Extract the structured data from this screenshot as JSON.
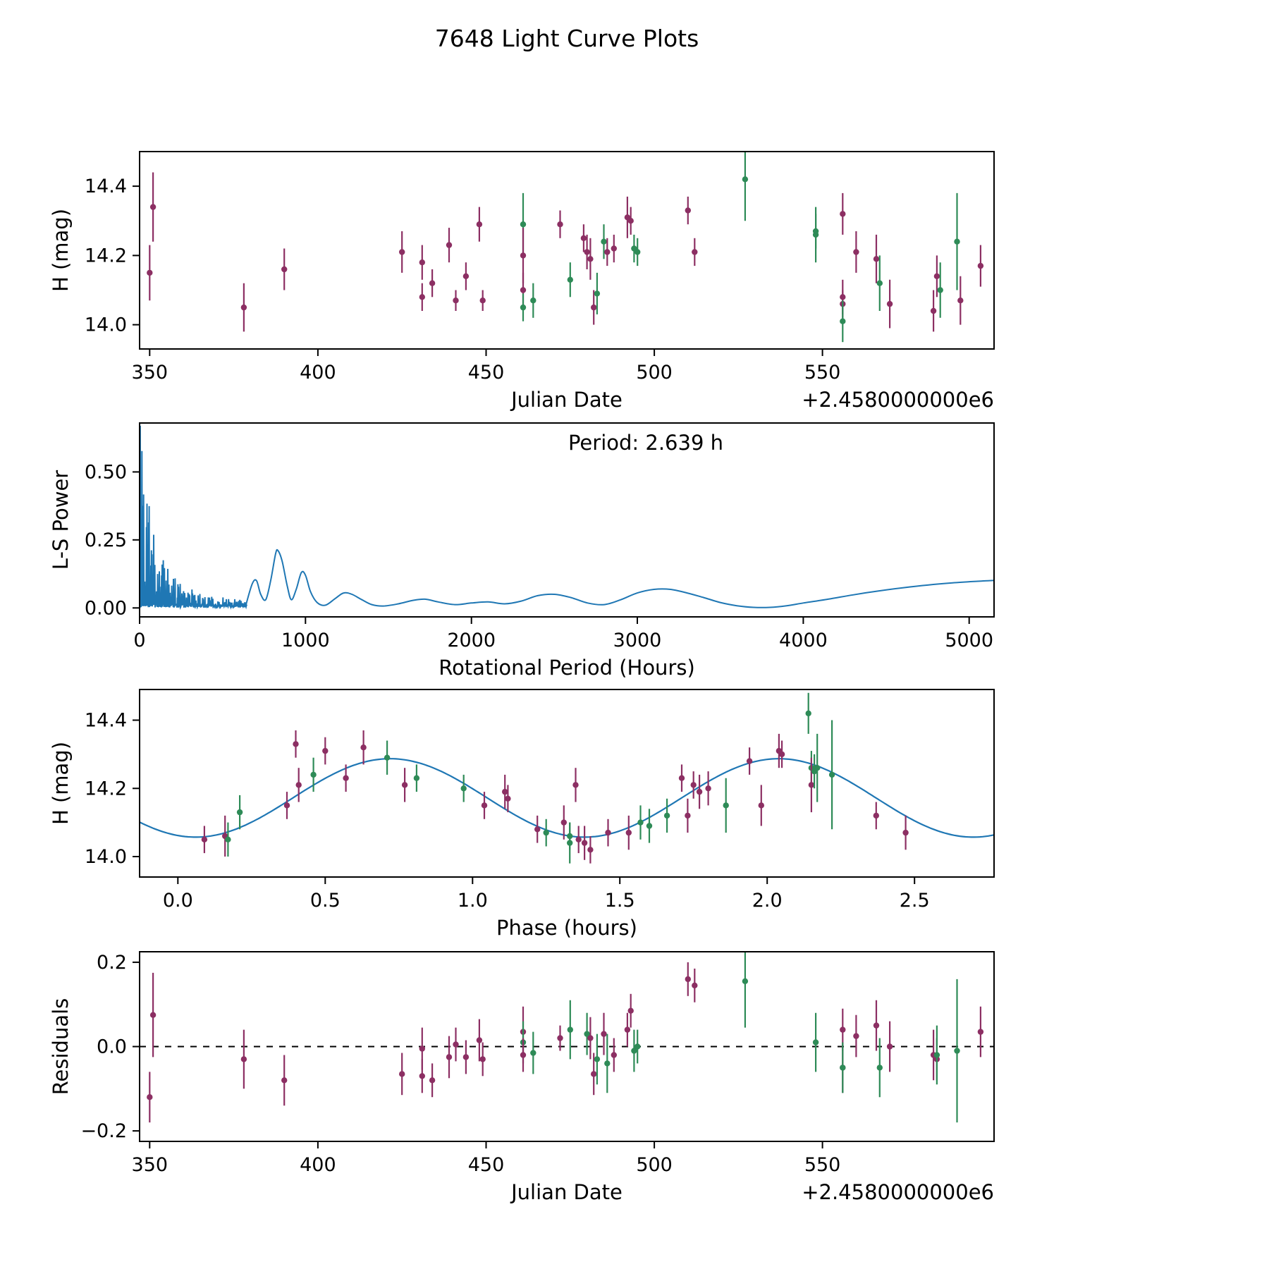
{
  "title": "7648 Light Curve Plots",
  "colors": {
    "purple": "#8c2f63",
    "green": "#2e8b57",
    "line_blue": "#1f77b4",
    "axis": "#000000"
  },
  "chart_data": [
    {
      "id": "lightcurve",
      "type": "scatter",
      "xlabel": "Julian Date",
      "ylabel": "H (mag)",
      "x_offset_label": "+2.4580000000e6",
      "xlim": [
        347,
        601
      ],
      "ylim": [
        13.93,
        14.5
      ],
      "xticks": [
        [
          350,
          "350"
        ],
        [
          400,
          "400"
        ],
        [
          450,
          "450"
        ],
        [
          500,
          "500"
        ],
        [
          550,
          "550"
        ]
      ],
      "yticks": [
        [
          14.0,
          "14.0"
        ],
        [
          14.2,
          "14.2"
        ],
        [
          14.4,
          "14.4"
        ]
      ],
      "points": [
        [
          350,
          14.15,
          0.08,
          "p"
        ],
        [
          351,
          14.34,
          0.1,
          "p"
        ],
        [
          378,
          14.05,
          0.07,
          "p"
        ],
        [
          390,
          14.16,
          0.06,
          "p"
        ],
        [
          425,
          14.21,
          0.06,
          "p"
        ],
        [
          431,
          14.18,
          0.05,
          "p"
        ],
        [
          431,
          14.08,
          0.04,
          "p"
        ],
        [
          434,
          14.12,
          0.04,
          "p"
        ],
        [
          439,
          14.23,
          0.05,
          "p"
        ],
        [
          441,
          14.07,
          0.03,
          "p"
        ],
        [
          444,
          14.14,
          0.04,
          "p"
        ],
        [
          448,
          14.29,
          0.05,
          "p"
        ],
        [
          449,
          14.07,
          0.03,
          "p"
        ],
        [
          461,
          14.29,
          0.09,
          "g"
        ],
        [
          461,
          14.2,
          0.08,
          "p"
        ],
        [
          461,
          14.1,
          0.05,
          "p"
        ],
        [
          461,
          14.05,
          0.04,
          "g"
        ],
        [
          464,
          14.07,
          0.05,
          "g"
        ],
        [
          472,
          14.29,
          0.04,
          "p"
        ],
        [
          475,
          14.13,
          0.05,
          "g"
        ],
        [
          479,
          14.25,
          0.04,
          "p"
        ],
        [
          480,
          14.21,
          0.05,
          "p"
        ],
        [
          481,
          14.19,
          0.06,
          "p"
        ],
        [
          482,
          14.05,
          0.05,
          "p"
        ],
        [
          483,
          14.09,
          0.06,
          "g"
        ],
        [
          485,
          14.24,
          0.05,
          "g"
        ],
        [
          486,
          14.21,
          0.04,
          "p"
        ],
        [
          488,
          14.22,
          0.04,
          "p"
        ],
        [
          492,
          14.31,
          0.06,
          "p"
        ],
        [
          493,
          14.3,
          0.04,
          "p"
        ],
        [
          494,
          14.22,
          0.04,
          "g"
        ],
        [
          495,
          14.21,
          0.04,
          "g"
        ],
        [
          510,
          14.33,
          0.04,
          "p"
        ],
        [
          512,
          14.21,
          0.04,
          "p"
        ],
        [
          527,
          14.42,
          0.12,
          "g"
        ],
        [
          548,
          14.26,
          0.08,
          "g"
        ],
        [
          548,
          14.27,
          0.05,
          "g"
        ],
        [
          556,
          14.32,
          0.06,
          "p"
        ],
        [
          556,
          14.08,
          0.05,
          "p"
        ],
        [
          556,
          14.06,
          0.04,
          "p"
        ],
        [
          556,
          14.01,
          0.06,
          "g"
        ],
        [
          560,
          14.21,
          0.06,
          "p"
        ],
        [
          566,
          14.19,
          0.07,
          "p"
        ],
        [
          567,
          14.12,
          0.08,
          "g"
        ],
        [
          570,
          14.06,
          0.07,
          "p"
        ],
        [
          583,
          14.04,
          0.06,
          "p"
        ],
        [
          584,
          14.14,
          0.06,
          "p"
        ],
        [
          585,
          14.1,
          0.08,
          "g"
        ],
        [
          590,
          14.24,
          0.14,
          "g"
        ],
        [
          591,
          14.07,
          0.07,
          "p"
        ],
        [
          597,
          14.17,
          0.06,
          "p"
        ]
      ]
    },
    {
      "id": "periodogram",
      "type": "line",
      "annotation": "Period: 2.639 h",
      "peak_period_hours": 2.639,
      "xlabel": "Rotational Period (Hours)",
      "ylabel": "L-S Power",
      "xlim": [
        0,
        5150
      ],
      "ylim": [
        -0.033,
        0.68
      ],
      "xticks": [
        [
          0,
          "0"
        ],
        [
          1000,
          "1000"
        ],
        [
          2000,
          "2000"
        ],
        [
          3000,
          "3000"
        ],
        [
          4000,
          "4000"
        ],
        [
          5000,
          "5000"
        ]
      ],
      "yticks": [
        [
          0.0,
          "0.00"
        ],
        [
          0.25,
          "0.25"
        ],
        [
          0.5,
          "0.50"
        ]
      ],
      "noise": {
        "x_start": 2,
        "x_end": 645,
        "n": 380,
        "seed": 7,
        "env_a": 0.58,
        "env_tau_a": 75,
        "env_b": 0.125,
        "env_tau_b": 420,
        "first_peak": 0.67
      },
      "curve": [
        [
          645,
          0.02
        ],
        [
          680,
          0.09
        ],
        [
          705,
          0.1
        ],
        [
          730,
          0.05
        ],
        [
          760,
          0.03
        ],
        [
          790,
          0.1
        ],
        [
          820,
          0.2
        ],
        [
          835,
          0.21
        ],
        [
          860,
          0.17
        ],
        [
          890,
          0.08
        ],
        [
          915,
          0.03
        ],
        [
          945,
          0.07
        ],
        [
          975,
          0.13
        ],
        [
          1000,
          0.12
        ],
        [
          1030,
          0.06
        ],
        [
          1070,
          0.02
        ],
        [
          1120,
          0.01
        ],
        [
          1180,
          0.035
        ],
        [
          1230,
          0.055
        ],
        [
          1280,
          0.05
        ],
        [
          1340,
          0.03
        ],
        [
          1400,
          0.012
        ],
        [
          1470,
          0.007
        ],
        [
          1560,
          0.015
        ],
        [
          1650,
          0.028
        ],
        [
          1720,
          0.032
        ],
        [
          1800,
          0.022
        ],
        [
          1900,
          0.012
        ],
        [
          2000,
          0.018
        ],
        [
          2100,
          0.022
        ],
        [
          2200,
          0.015
        ],
        [
          2300,
          0.025
        ],
        [
          2400,
          0.045
        ],
        [
          2500,
          0.05
        ],
        [
          2600,
          0.038
        ],
        [
          2700,
          0.018
        ],
        [
          2800,
          0.012
        ],
        [
          2900,
          0.03
        ],
        [
          3000,
          0.055
        ],
        [
          3100,
          0.068
        ],
        [
          3200,
          0.068
        ],
        [
          3300,
          0.055
        ],
        [
          3400,
          0.038
        ],
        [
          3500,
          0.02
        ],
        [
          3600,
          0.008
        ],
        [
          3700,
          0.002
        ],
        [
          3800,
          0.002
        ],
        [
          3900,
          0.008
        ],
        [
          4000,
          0.018
        ],
        [
          4150,
          0.032
        ],
        [
          4300,
          0.048
        ],
        [
          4450,
          0.062
        ],
        [
          4600,
          0.074
        ],
        [
          4750,
          0.084
        ],
        [
          4900,
          0.092
        ],
        [
          5050,
          0.098
        ],
        [
          5150,
          0.101
        ]
      ]
    },
    {
      "id": "phase",
      "type": "scatter_fit",
      "xlabel": "Phase (hours)",
      "ylabel": "H (mag)",
      "xlim": [
        -0.13,
        2.77
      ],
      "ylim": [
        13.94,
        14.49
      ],
      "xticks": [
        [
          0.0,
          "0.0"
        ],
        [
          0.5,
          "0.5"
        ],
        [
          1.0,
          "1.0"
        ],
        [
          1.5,
          "1.5"
        ],
        [
          2.0,
          "2.0"
        ],
        [
          2.5,
          "2.5"
        ]
      ],
      "yticks": [
        [
          14.0,
          "14.0"
        ],
        [
          14.2,
          "14.2"
        ],
        [
          14.4,
          "14.4"
        ]
      ],
      "fit": {
        "mean": 14.172,
        "amplitude": 0.115,
        "period": 1.3195,
        "phase_of_max": 0.72
      },
      "points": [
        [
          0.09,
          14.05,
          0.04,
          "p"
        ],
        [
          0.16,
          14.06,
          0.06,
          "p"
        ],
        [
          0.17,
          14.05,
          0.05,
          "g"
        ],
        [
          0.21,
          14.13,
          0.05,
          "g"
        ],
        [
          0.37,
          14.15,
          0.04,
          "p"
        ],
        [
          0.4,
          14.33,
          0.04,
          "p"
        ],
        [
          0.41,
          14.21,
          0.05,
          "p"
        ],
        [
          0.46,
          14.24,
          0.05,
          "g"
        ],
        [
          0.5,
          14.31,
          0.04,
          "p"
        ],
        [
          0.57,
          14.23,
          0.04,
          "p"
        ],
        [
          0.63,
          14.32,
          0.05,
          "p"
        ],
        [
          0.71,
          14.29,
          0.05,
          "g"
        ],
        [
          0.77,
          14.21,
          0.05,
          "p"
        ],
        [
          0.81,
          14.23,
          0.04,
          "g"
        ],
        [
          0.97,
          14.2,
          0.04,
          "g"
        ],
        [
          1.04,
          14.15,
          0.04,
          "p"
        ],
        [
          1.11,
          14.19,
          0.05,
          "p"
        ],
        [
          1.12,
          14.17,
          0.04,
          "p"
        ],
        [
          1.22,
          14.08,
          0.04,
          "p"
        ],
        [
          1.25,
          14.07,
          0.04,
          "g"
        ],
        [
          1.31,
          14.1,
          0.05,
          "p"
        ],
        [
          1.33,
          14.06,
          0.04,
          "g"
        ],
        [
          1.33,
          14.04,
          0.06,
          "g"
        ],
        [
          1.35,
          14.21,
          0.05,
          "p"
        ],
        [
          1.36,
          14.05,
          0.04,
          "p"
        ],
        [
          1.38,
          14.04,
          0.05,
          "p"
        ],
        [
          1.4,
          14.02,
          0.04,
          "p"
        ],
        [
          1.46,
          14.07,
          0.04,
          "p"
        ],
        [
          1.53,
          14.07,
          0.05,
          "p"
        ],
        [
          1.57,
          14.1,
          0.05,
          "g"
        ],
        [
          1.6,
          14.09,
          0.05,
          "g"
        ],
        [
          1.66,
          14.12,
          0.05,
          "g"
        ],
        [
          1.71,
          14.23,
          0.04,
          "p"
        ],
        [
          1.73,
          14.12,
          0.05,
          "p"
        ],
        [
          1.75,
          14.21,
          0.04,
          "p"
        ],
        [
          1.77,
          14.19,
          0.05,
          "p"
        ],
        [
          1.8,
          14.2,
          0.05,
          "p"
        ],
        [
          1.86,
          14.15,
          0.08,
          "g"
        ],
        [
          1.94,
          14.28,
          0.04,
          "p"
        ],
        [
          1.98,
          14.15,
          0.06,
          "p"
        ],
        [
          2.04,
          14.31,
          0.05,
          "p"
        ],
        [
          2.05,
          14.3,
          0.04,
          "p"
        ],
        [
          2.14,
          14.42,
          0.06,
          "g"
        ],
        [
          2.15,
          14.26,
          0.05,
          "g"
        ],
        [
          2.15,
          14.21,
          0.08,
          "p"
        ],
        [
          2.16,
          14.25,
          0.05,
          "g"
        ],
        [
          2.17,
          14.26,
          0.1,
          "g"
        ],
        [
          2.22,
          14.24,
          0.16,
          "g"
        ],
        [
          2.37,
          14.12,
          0.04,
          "p"
        ],
        [
          2.47,
          14.07,
          0.05,
          "p"
        ]
      ]
    },
    {
      "id": "residuals",
      "type": "scatter",
      "xlabel": "Julian Date",
      "ylabel": "Residuals",
      "x_offset_label": "+2.4580000000e6",
      "xlim": [
        347,
        601
      ],
      "ylim": [
        -0.225,
        0.225
      ],
      "xticks": [
        [
          350,
          "350"
        ],
        [
          400,
          "400"
        ],
        [
          450,
          "450"
        ],
        [
          500,
          "500"
        ],
        [
          550,
          "550"
        ]
      ],
      "yticks": [
        [
          -0.2,
          "−0.2"
        ],
        [
          0.0,
          "0.0"
        ],
        [
          0.2,
          "0.2"
        ]
      ],
      "zero_line": true,
      "points": [
        [
          350,
          -0.12,
          0.06,
          "p"
        ],
        [
          351,
          0.075,
          0.1,
          "p"
        ],
        [
          378,
          -0.03,
          0.07,
          "p"
        ],
        [
          390,
          -0.08,
          0.06,
          "p"
        ],
        [
          425,
          -0.065,
          0.05,
          "p"
        ],
        [
          431,
          -0.005,
          0.05,
          "p"
        ],
        [
          431,
          -0.07,
          0.04,
          "p"
        ],
        [
          434,
          -0.08,
          0.04,
          "p"
        ],
        [
          439,
          -0.025,
          0.05,
          "p"
        ],
        [
          441,
          0.005,
          0.04,
          "p"
        ],
        [
          444,
          -0.025,
          0.04,
          "p"
        ],
        [
          448,
          0.015,
          0.05,
          "p"
        ],
        [
          449,
          -0.03,
          0.04,
          "p"
        ],
        [
          461,
          0.035,
          0.06,
          "p"
        ],
        [
          461,
          0.01,
          0.05,
          "g"
        ],
        [
          461,
          -0.02,
          0.04,
          "p"
        ],
        [
          464,
          -0.015,
          0.05,
          "g"
        ],
        [
          472,
          0.02,
          0.03,
          "p"
        ],
        [
          475,
          0.04,
          0.07,
          "g"
        ],
        [
          480,
          0.03,
          0.05,
          "g"
        ],
        [
          481,
          0.02,
          0.05,
          "p"
        ],
        [
          482,
          -0.065,
          0.05,
          "p"
        ],
        [
          483,
          -0.03,
          0.06,
          "g"
        ],
        [
          485,
          0.03,
          0.05,
          "p"
        ],
        [
          486,
          -0.04,
          0.07,
          "g"
        ],
        [
          488,
          -0.02,
          0.04,
          "p"
        ],
        [
          492,
          0.04,
          0.04,
          "p"
        ],
        [
          493,
          0.085,
          0.04,
          "p"
        ],
        [
          494,
          -0.01,
          0.05,
          "g"
        ],
        [
          495,
          0.0,
          0.04,
          "g"
        ],
        [
          510,
          0.16,
          0.04,
          "p"
        ],
        [
          512,
          0.145,
          0.04,
          "p"
        ],
        [
          527,
          0.155,
          0.11,
          "g"
        ],
        [
          548,
          0.01,
          0.07,
          "g"
        ],
        [
          556,
          0.04,
          0.05,
          "p"
        ],
        [
          556,
          -0.05,
          0.06,
          "p"
        ],
        [
          556,
          -0.05,
          0.06,
          "g"
        ],
        [
          560,
          0.025,
          0.05,
          "p"
        ],
        [
          566,
          0.05,
          0.06,
          "p"
        ],
        [
          567,
          -0.05,
          0.07,
          "g"
        ],
        [
          570,
          0.0,
          0.06,
          "p"
        ],
        [
          583,
          -0.02,
          0.06,
          "p"
        ],
        [
          584,
          -0.03,
          0.05,
          "p"
        ],
        [
          584,
          -0.02,
          0.07,
          "g"
        ],
        [
          590,
          -0.01,
          0.17,
          "g"
        ],
        [
          597,
          0.035,
          0.06,
          "p"
        ]
      ]
    }
  ]
}
